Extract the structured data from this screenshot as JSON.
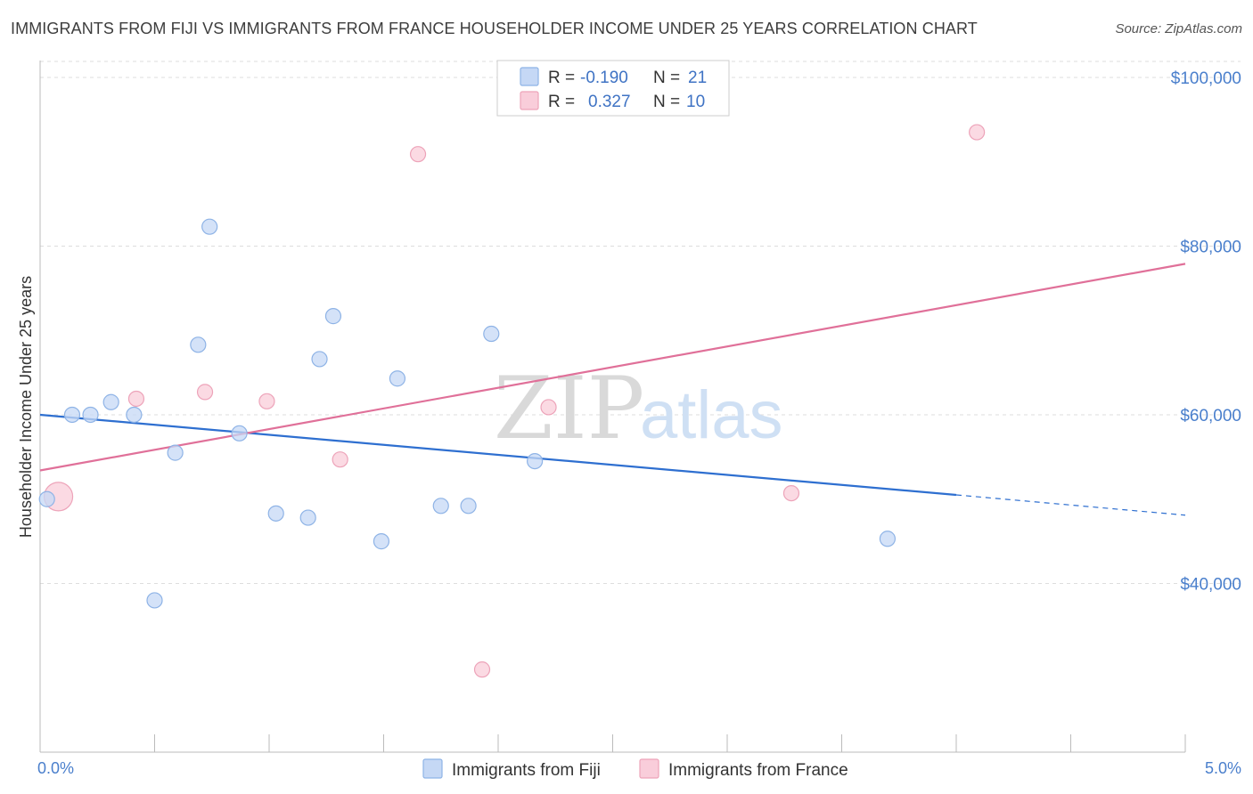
{
  "header": {
    "title": "IMMIGRANTS FROM FIJI VS IMMIGRANTS FROM FRANCE HOUSEHOLDER INCOME UNDER 25 YEARS CORRELATION CHART",
    "source": "Source: ZipAtlas.com"
  },
  "colors": {
    "fiji_fill": "#c5d8f5",
    "fiji_stroke": "#8eb3e6",
    "fiji_line": "#2e6fd0",
    "france_fill": "#f9cdda",
    "france_stroke": "#eda3b9",
    "france_line": "#e07099",
    "tick_text": "#4a7fcc",
    "grid": "#dddddd"
  },
  "legend": {
    "rows": [
      {
        "r_label": "R =",
        "r_value": "-0.190",
        "n_label": "N =",
        "n_value": "21"
      },
      {
        "r_label": "R =",
        "r_value": "0.327",
        "n_label": "N =",
        "n_value": "10"
      }
    ]
  },
  "watermark": {
    "zip": "ZIP",
    "atlas": "atlas"
  },
  "chart_data": {
    "type": "scatter",
    "title": "IMMIGRANTS FROM FIJI VS IMMIGRANTS FROM FRANCE HOUSEHOLDER INCOME UNDER 25 YEARS CORRELATION CHART",
    "xlabel": "",
    "ylabel": "Householder Income Under 25 years",
    "xlim": [
      0,
      5
    ],
    "ylim": [
      20000,
      102000
    ],
    "x_tick_labels": [
      "0.0%",
      "5.0%"
    ],
    "y_ticks": [
      40000,
      60000,
      80000,
      100000
    ],
    "y_tick_labels": [
      "$40,000",
      "$60,000",
      "$80,000",
      "$100,000"
    ],
    "grid": true,
    "series": [
      {
        "name": "Immigrants from Fiji",
        "points": [
          {
            "x": 0.03,
            "y": 50000
          },
          {
            "x": 0.14,
            "y": 60000
          },
          {
            "x": 0.22,
            "y": 60000
          },
          {
            "x": 0.31,
            "y": 61500
          },
          {
            "x": 0.41,
            "y": 60000
          },
          {
            "x": 0.5,
            "y": 38000
          },
          {
            "x": 0.59,
            "y": 55500
          },
          {
            "x": 0.69,
            "y": 68300
          },
          {
            "x": 0.74,
            "y": 82300
          },
          {
            "x": 0.87,
            "y": 57800
          },
          {
            "x": 1.03,
            "y": 48300
          },
          {
            "x": 1.17,
            "y": 47800
          },
          {
            "x": 1.22,
            "y": 66600
          },
          {
            "x": 1.28,
            "y": 71700
          },
          {
            "x": 1.49,
            "y": 45000
          },
          {
            "x": 1.56,
            "y": 64300
          },
          {
            "x": 1.75,
            "y": 49200
          },
          {
            "x": 1.87,
            "y": 49200
          },
          {
            "x": 1.97,
            "y": 69600
          },
          {
            "x": 2.16,
            "y": 54500
          },
          {
            "x": 3.7,
            "y": 45300
          }
        ],
        "trend": {
          "x_start": 0.0,
          "y_start": 60000,
          "x_solid_end": 4.0,
          "y_solid_end": 50500,
          "x_end": 5.0,
          "y_end": 48100
        }
      },
      {
        "name": "Immigrants from France",
        "points": [
          {
            "x": 0.08,
            "y": 50300,
            "size": "large"
          },
          {
            "x": 0.42,
            "y": 61900
          },
          {
            "x": 0.72,
            "y": 62700
          },
          {
            "x": 0.99,
            "y": 61600
          },
          {
            "x": 1.31,
            "y": 54700
          },
          {
            "x": 1.65,
            "y": 90900
          },
          {
            "x": 1.93,
            "y": 29800
          },
          {
            "x": 2.22,
            "y": 60900
          },
          {
            "x": 3.28,
            "y": 50700
          },
          {
            "x": 4.09,
            "y": 93500
          }
        ],
        "trend": {
          "x_start": 0.0,
          "y_start": 53400,
          "x_end": 5.0,
          "y_end": 77900
        }
      }
    ]
  }
}
